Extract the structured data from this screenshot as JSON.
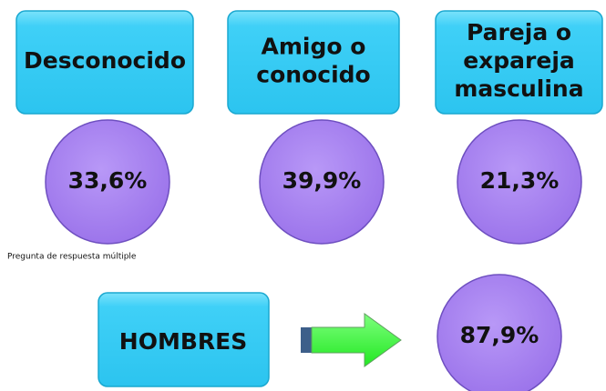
{
  "perpetrators": [
    {
      "label": [
        "Desconocido"
      ],
      "value": "33,6%"
    },
    {
      "label": [
        "Amigo o",
        "conocido"
      ],
      "value": "39,9%"
    },
    {
      "label": [
        "Pareja o",
        "expareja",
        "masculina"
      ],
      "value": "21,3%"
    }
  ],
  "note": "Pregunta de respuesta múltiple",
  "summary": {
    "label": "HOMBRES",
    "value": "87,9%"
  }
}
